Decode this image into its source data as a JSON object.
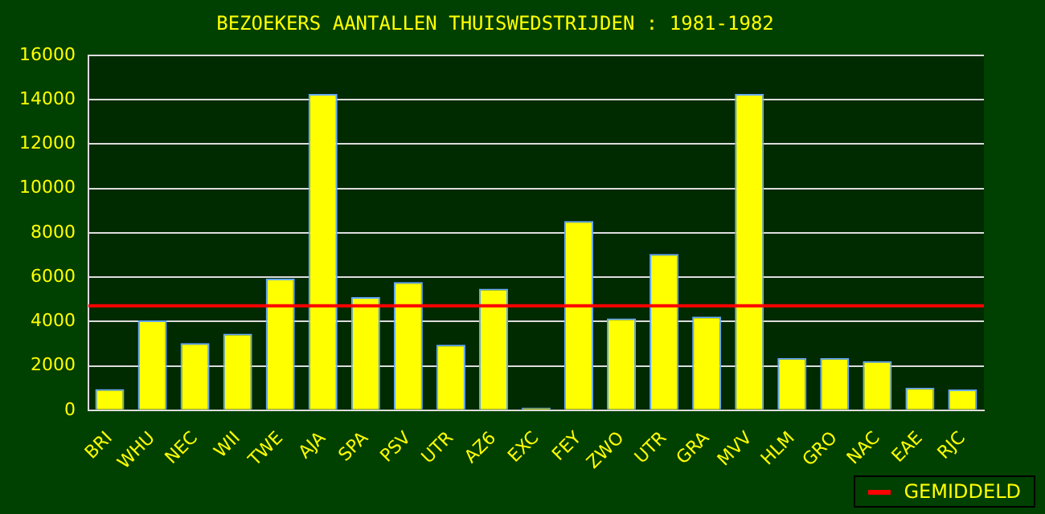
{
  "chart_data": {
    "type": "bar",
    "title": "BEZOEKERS AANTALLEN THUISWEDSTRIJDEN : 1981-1982",
    "categories": [
      "BRI",
      "WHU",
      "NEC",
      "WII",
      "TWE",
      "AJA",
      "SPA",
      "PSV",
      "UTR",
      "AZ6",
      "EXC",
      "FEY",
      "ZWO",
      "UTR",
      "GRA",
      "MVV",
      "HLM",
      "GRO",
      "NAC",
      "EAE",
      "RJC"
    ],
    "values": [
      950,
      4050,
      3030,
      3450,
      5930,
      14260,
      5100,
      5780,
      2950,
      5480,
      120,
      8530,
      4140,
      7040,
      4220,
      14260,
      2360,
      2360,
      2210,
      1020,
      940
    ],
    "color": "#ffff00",
    "ylim": [
      0,
      16000
    ],
    "yticks": [
      0,
      2000,
      4000,
      6000,
      8000,
      10000,
      12000,
      14000,
      16000
    ],
    "grid": "y",
    "ref_lines": [
      {
        "axis": "y",
        "value": 4710,
        "label": "GEMIDDELD",
        "color": "#ff0000"
      }
    ],
    "legend": "bottom right"
  }
}
